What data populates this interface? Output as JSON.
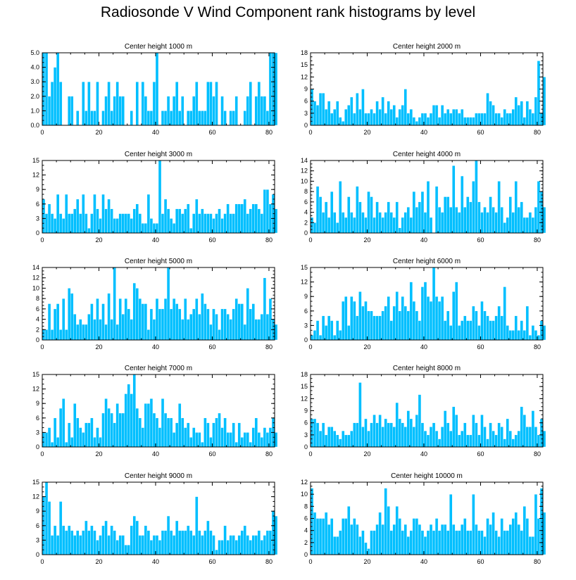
{
  "title": "Radiosonde V Wind Component rank histograms by level",
  "chart_data": [
    {
      "type": "bar",
      "title": "Center height 1000 m",
      "xlim": [
        0,
        82
      ],
      "ylim": [
        0,
        5
      ],
      "yticks": [
        0,
        1,
        2,
        3,
        4,
        5
      ],
      "ytick_labels": [
        "0.0",
        "1.0",
        "2.0",
        "3.0",
        "4.0",
        "5.0"
      ],
      "xticks": [
        0,
        20,
        40,
        60,
        80
      ],
      "values": [
        5,
        5,
        2,
        3,
        4,
        5,
        3,
        0,
        0,
        2,
        2,
        0,
        1,
        0,
        3,
        1,
        3,
        1,
        1,
        3,
        0,
        1,
        2,
        3,
        1,
        2,
        3,
        2,
        2,
        0,
        0,
        1,
        0,
        3,
        0,
        3,
        2,
        1,
        1,
        3,
        5,
        0,
        1,
        1,
        2,
        1,
        2,
        3,
        1,
        2,
        0,
        1,
        1,
        2,
        3,
        1,
        1,
        1,
        3,
        3,
        2,
        3,
        0,
        2,
        1,
        0,
        1,
        1,
        2,
        0,
        0,
        1,
        2,
        3,
        0,
        2,
        3,
        2,
        2,
        1,
        5,
        5,
        5
      ]
    },
    {
      "type": "bar",
      "title": "Center height 2000 m",
      "xlim": [
        0,
        82
      ],
      "ylim": [
        0,
        18
      ],
      "yticks": [
        0,
        3,
        6,
        9,
        12,
        15,
        18
      ],
      "ytick_labels": [
        "0",
        "3",
        "6",
        "9",
        "12",
        "15",
        "18"
      ],
      "xticks": [
        0,
        20,
        40,
        60,
        80
      ],
      "values": [
        9,
        6,
        5,
        8,
        8,
        4,
        6,
        3,
        4,
        6,
        2,
        1,
        4,
        5,
        7,
        3,
        8,
        4,
        9,
        3,
        3,
        4,
        3,
        6,
        4,
        7,
        3,
        6,
        4,
        5,
        2,
        4,
        5,
        9,
        3,
        4,
        2,
        1,
        2,
        3,
        3,
        2,
        3,
        5,
        5,
        2,
        5,
        3,
        4,
        3,
        4,
        4,
        3,
        4,
        2,
        2,
        2,
        2,
        3,
        3,
        3,
        3,
        8,
        6,
        5,
        3,
        3,
        2,
        4,
        3,
        3,
        4,
        7,
        5,
        6,
        2,
        6,
        4,
        3,
        7,
        16,
        3,
        12
      ]
    },
    {
      "type": "bar",
      "title": "Center height 3000 m",
      "xlim": [
        0,
        82
      ],
      "ylim": [
        0,
        15
      ],
      "yticks": [
        0,
        3,
        6,
        9,
        12,
        15
      ],
      "ytick_labels": [
        "0",
        "3",
        "6",
        "9",
        "12",
        "15"
      ],
      "xticks": [
        0,
        20,
        40,
        60,
        80
      ],
      "values": [
        7,
        4,
        6,
        4,
        3,
        8,
        4,
        3,
        8,
        4,
        4,
        5,
        7,
        4,
        8,
        4,
        1,
        4,
        8,
        5,
        3,
        8,
        5,
        7,
        5,
        3,
        3,
        4,
        4,
        4,
        4,
        3,
        5,
        6,
        4,
        2,
        2,
        8,
        3,
        2,
        2,
        15,
        4,
        7,
        5,
        3,
        2,
        5,
        5,
        4,
        5,
        6,
        1,
        4,
        7,
        4,
        5,
        4,
        4,
        4,
        3,
        4,
        5,
        3,
        4,
        6,
        4,
        4,
        6,
        6,
        6,
        7,
        4,
        5,
        6,
        6,
        5,
        4,
        9,
        9,
        6,
        8,
        5
      ]
    },
    {
      "type": "bar",
      "title": "Center height 4000 m",
      "xlim": [
        0,
        82
      ],
      "ylim": [
        0,
        14
      ],
      "yticks": [
        0,
        2,
        4,
        6,
        8,
        10,
        12,
        14
      ],
      "ytick_labels": [
        "0",
        "2",
        "4",
        "6",
        "8",
        "10",
        "12",
        "14"
      ],
      "xticks": [
        0,
        20,
        40,
        60,
        80
      ],
      "values": [
        3,
        2,
        9,
        7,
        4,
        6,
        3,
        8,
        4,
        2,
        10,
        4,
        3,
        7,
        4,
        3,
        9,
        6,
        4,
        3,
        8,
        7,
        3,
        6,
        4,
        3,
        4,
        6,
        4,
        3,
        6,
        1,
        3,
        4,
        5,
        3,
        8,
        5,
        6,
        8,
        4,
        10,
        3,
        0,
        9,
        5,
        4,
        7,
        7,
        5,
        13,
        5,
        4,
        11,
        5,
        7,
        6,
        10,
        14,
        6,
        4,
        5,
        4,
        7,
        5,
        4,
        10,
        5,
        2,
        3,
        7,
        4,
        10,
        5,
        6,
        3,
        3,
        4,
        3,
        5,
        10,
        8,
        5
      ]
    },
    {
      "type": "bar",
      "title": "Center height 5000 m",
      "xlim": [
        0,
        82
      ],
      "ylim": [
        0,
        14
      ],
      "yticks": [
        0,
        2,
        4,
        6,
        8,
        10,
        12,
        14
      ],
      "ytick_labels": [
        "0",
        "2",
        "4",
        "6",
        "8",
        "10",
        "12",
        "14"
      ],
      "xticks": [
        0,
        20,
        40,
        60,
        80
      ],
      "values": [
        2,
        2,
        7,
        2,
        6,
        7,
        2,
        8,
        2,
        10,
        9,
        5,
        3,
        4,
        3,
        3,
        5,
        7,
        4,
        8,
        4,
        7,
        3,
        9,
        4,
        14,
        3,
        8,
        5,
        8,
        6,
        4,
        11,
        10,
        8,
        7,
        7,
        2,
        6,
        4,
        8,
        6,
        6,
        8,
        14,
        6,
        8,
        7,
        6,
        4,
        8,
        4,
        5,
        6,
        8,
        5,
        9,
        7,
        6,
        3,
        6,
        5,
        2,
        6,
        6,
        5,
        4,
        6,
        8,
        7,
        7,
        3,
        10,
        6,
        7,
        4,
        4,
        5,
        12,
        5,
        8,
        4,
        3
      ]
    },
    {
      "type": "bar",
      "title": "Center height 6000 m",
      "xlim": [
        0,
        82
      ],
      "ylim": [
        0,
        15
      ],
      "yticks": [
        0,
        3,
        6,
        9,
        12,
        15
      ],
      "ytick_labels": [
        "0",
        "3",
        "6",
        "9",
        "12",
        "15"
      ],
      "xticks": [
        0,
        20,
        40,
        60,
        80
      ],
      "values": [
        1,
        2,
        4,
        1,
        5,
        3,
        5,
        4,
        1,
        4,
        2,
        8,
        9,
        3,
        9,
        8,
        5,
        10,
        7,
        8,
        6,
        6,
        5,
        5,
        5,
        6,
        7,
        9,
        4,
        7,
        10,
        6,
        9,
        7,
        6,
        12,
        8,
        6,
        4,
        11,
        12,
        9,
        8,
        15,
        9,
        8,
        9,
        4,
        6,
        3,
        10,
        12,
        3,
        4,
        5,
        4,
        4,
        7,
        6,
        3,
        8,
        6,
        5,
        4,
        4,
        5,
        7,
        5,
        11,
        3,
        2,
        2,
        5,
        2,
        4,
        2,
        7,
        1,
        3,
        2,
        1,
        4,
        3
      ]
    },
    {
      "type": "bar",
      "title": "Center height 7000 m",
      "xlim": [
        0,
        82
      ],
      "ylim": [
        0,
        15
      ],
      "yticks": [
        0,
        3,
        6,
        9,
        12,
        15
      ],
      "ytick_labels": [
        "0",
        "3",
        "6",
        "9",
        "12",
        "15"
      ],
      "xticks": [
        0,
        20,
        40,
        60,
        80
      ],
      "values": [
        3,
        3,
        4,
        1,
        6,
        2,
        8,
        10,
        1,
        5,
        2,
        9,
        6,
        4,
        3,
        5,
        5,
        6,
        2,
        4,
        2,
        7,
        10,
        8,
        7,
        5,
        9,
        7,
        7,
        11,
        13,
        11,
        15,
        8,
        6,
        4,
        9,
        9,
        10,
        7,
        6,
        4,
        10,
        7,
        6,
        6,
        3,
        5,
        9,
        6,
        4,
        5,
        2,
        4,
        3,
        3,
        1,
        6,
        5,
        2,
        5,
        6,
        7,
        4,
        6,
        3,
        3,
        5,
        1,
        5,
        2,
        3,
        3,
        1,
        4,
        6,
        3,
        2,
        4,
        3,
        4,
        6,
        3
      ]
    },
    {
      "type": "bar",
      "title": "Center height 8000 m",
      "xlim": [
        0,
        82
      ],
      "ylim": [
        0,
        18
      ],
      "yticks": [
        0,
        3,
        6,
        9,
        12,
        15,
        18
      ],
      "ytick_labels": [
        "0",
        "3",
        "6",
        "9",
        "12",
        "15",
        "18"
      ],
      "xticks": [
        0,
        20,
        40,
        60,
        80
      ],
      "values": [
        7,
        7,
        6,
        4,
        6,
        3,
        5,
        5,
        4,
        3,
        2,
        4,
        3,
        3,
        4,
        6,
        6,
        16,
        5,
        7,
        4,
        6,
        8,
        6,
        8,
        5,
        7,
        6,
        6,
        5,
        11,
        7,
        6,
        5,
        9,
        7,
        5,
        8,
        13,
        6,
        4,
        3,
        5,
        6,
        4,
        2,
        5,
        9,
        6,
        4,
        10,
        8,
        3,
        4,
        6,
        3,
        3,
        8,
        6,
        3,
        8,
        5,
        2,
        6,
        4,
        3,
        6,
        5,
        2,
        7,
        4,
        2,
        3,
        4,
        10,
        8,
        5,
        5,
        9,
        5,
        3,
        7,
        4
      ]
    },
    {
      "type": "bar",
      "title": "Center height 9000 m",
      "xlim": [
        0,
        82
      ],
      "ylim": [
        0,
        15
      ],
      "yticks": [
        0,
        3,
        6,
        9,
        12,
        15
      ],
      "ytick_labels": [
        "0",
        "3",
        "6",
        "9",
        "12",
        "15"
      ],
      "xticks": [
        0,
        20,
        40,
        60,
        80
      ],
      "values": [
        12,
        15,
        11,
        4,
        6,
        4,
        11,
        6,
        5,
        6,
        5,
        4,
        5,
        4,
        5,
        7,
        5,
        6,
        5,
        3,
        4,
        6,
        7,
        4,
        6,
        5,
        3,
        4,
        4,
        2,
        2,
        6,
        8,
        7,
        4,
        4,
        6,
        5,
        3,
        4,
        4,
        3,
        5,
        5,
        8,
        5,
        4,
        7,
        5,
        5,
        5,
        6,
        5,
        4,
        12,
        5,
        4,
        5,
        7,
        5,
        4,
        1,
        3,
        3,
        6,
        3,
        4,
        4,
        3,
        4,
        5,
        6,
        4,
        3,
        4,
        4,
        5,
        3,
        4,
        5,
        5,
        9,
        8
      ]
    },
    {
      "type": "bar",
      "title": "Center height 10000 m",
      "xlim": [
        0,
        82
      ],
      "ylim": [
        0,
        12
      ],
      "yticks": [
        0,
        2,
        4,
        6,
        8,
        10,
        12
      ],
      "ytick_labels": [
        "0",
        "2",
        "4",
        "6",
        "8",
        "10",
        "12"
      ],
      "xticks": [
        0,
        20,
        40,
        60,
        80
      ],
      "values": [
        11,
        7,
        6,
        6,
        6,
        7,
        5,
        6,
        3,
        3,
        4,
        6,
        6,
        8,
        5,
        6,
        5,
        3,
        4,
        2,
        1,
        4,
        4,
        5,
        7,
        5,
        11,
        8,
        4,
        5,
        8,
        6,
        4,
        5,
        3,
        4,
        6,
        6,
        5,
        4,
        3,
        4,
        5,
        4,
        6,
        4,
        5,
        5,
        4,
        10,
        5,
        4,
        4,
        5,
        6,
        4,
        4,
        10,
        5,
        4,
        4,
        3,
        6,
        5,
        7,
        4,
        3,
        6,
        4,
        4,
        5,
        6,
        7,
        5,
        4,
        8,
        6,
        3,
        3,
        10,
        6,
        11,
        7
      ]
    }
  ]
}
